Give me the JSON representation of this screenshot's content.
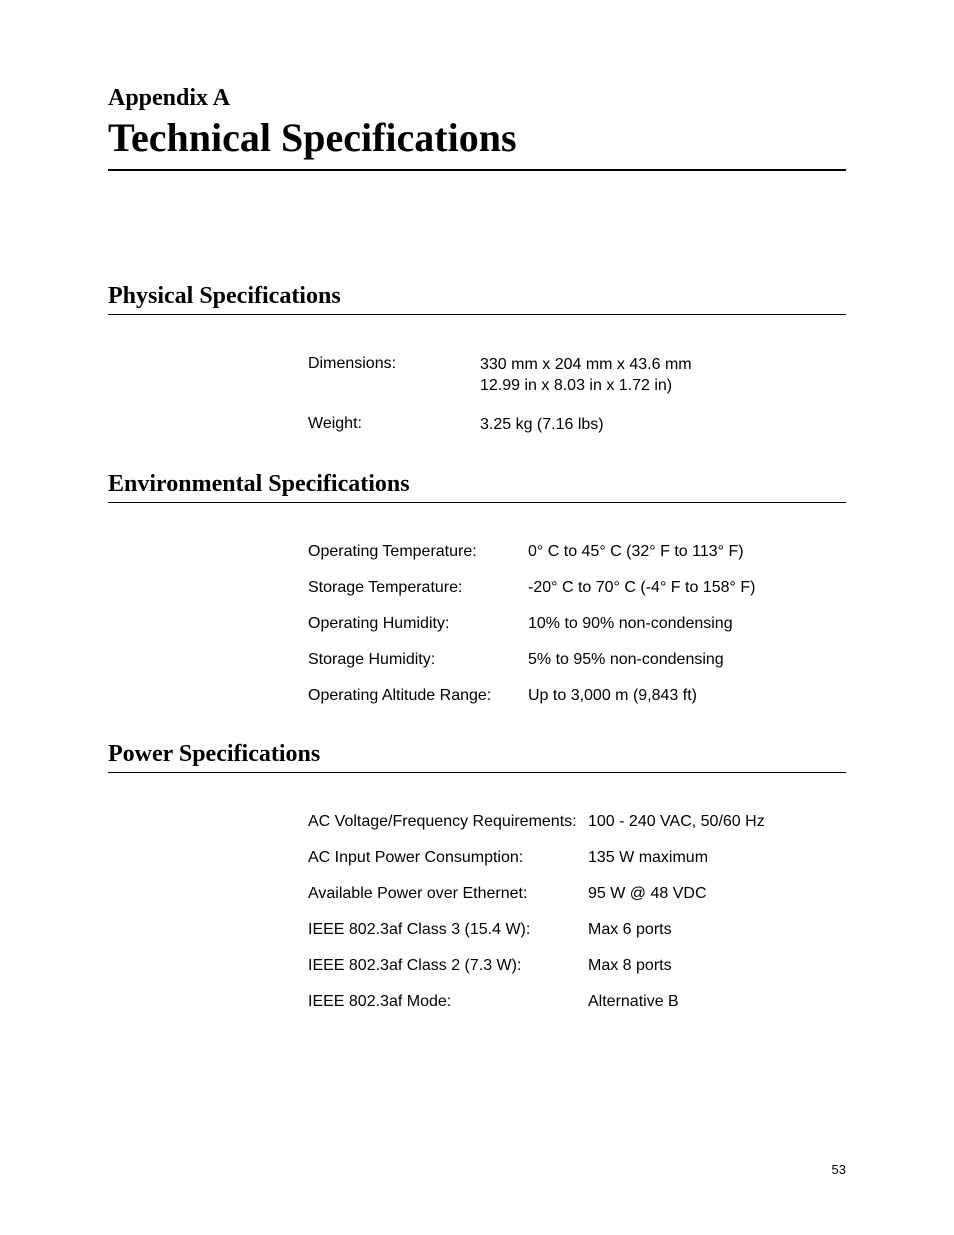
{
  "header": {
    "appendix_label": "Appendix A",
    "main_title": "Technical Specifications"
  },
  "sections": {
    "physical": {
      "title": "Physical Specifications",
      "rows": [
        {
          "label": "Dimensions:",
          "value_line1": "330 mm x 204 mm x 43.6 mm",
          "value_line2": "12.99 in x 8.03 in x 1.72 in)"
        },
        {
          "label": "Weight:",
          "value_line1": "3.25 kg (7.16 lbs)",
          "value_line2": ""
        }
      ]
    },
    "environmental": {
      "title": "Environmental Specifications",
      "rows": [
        {
          "label": "Operating Temperature:",
          "value": "0° C to 45° C (32° F to 113° F)"
        },
        {
          "label": "Storage Temperature:",
          "value": "-20° C to 70° C (-4° F to 158° F)"
        },
        {
          "label": "Operating Humidity:",
          "value": "10% to 90% non-condensing"
        },
        {
          "label": "Storage Humidity:",
          "value": "5% to 95% non-condensing"
        },
        {
          "label": "Operating Altitude Range:",
          "value": "Up to 3,000 m (9,843 ft)"
        }
      ]
    },
    "power": {
      "title": "Power Specifications",
      "rows": [
        {
          "label": "AC Voltage/Frequency Requirements:",
          "value": "100 - 240 VAC, 50/60 Hz"
        },
        {
          "label": "AC Input Power Consumption:",
          "value": "135 W maximum"
        },
        {
          "label": "Available Power over Ethernet:",
          "value": "95 W @ 48 VDC"
        },
        {
          "label": "IEEE 802.3af Class 3 (15.4 W):",
          "value": "Max 6 ports"
        },
        {
          "label": "IEEE 802.3af Class 2 (7.3 W):",
          "value": "Max 8 ports"
        },
        {
          "label": "IEEE 802.3af Mode:",
          "value": "Alternative B"
        }
      ]
    }
  },
  "page_number": "53"
}
